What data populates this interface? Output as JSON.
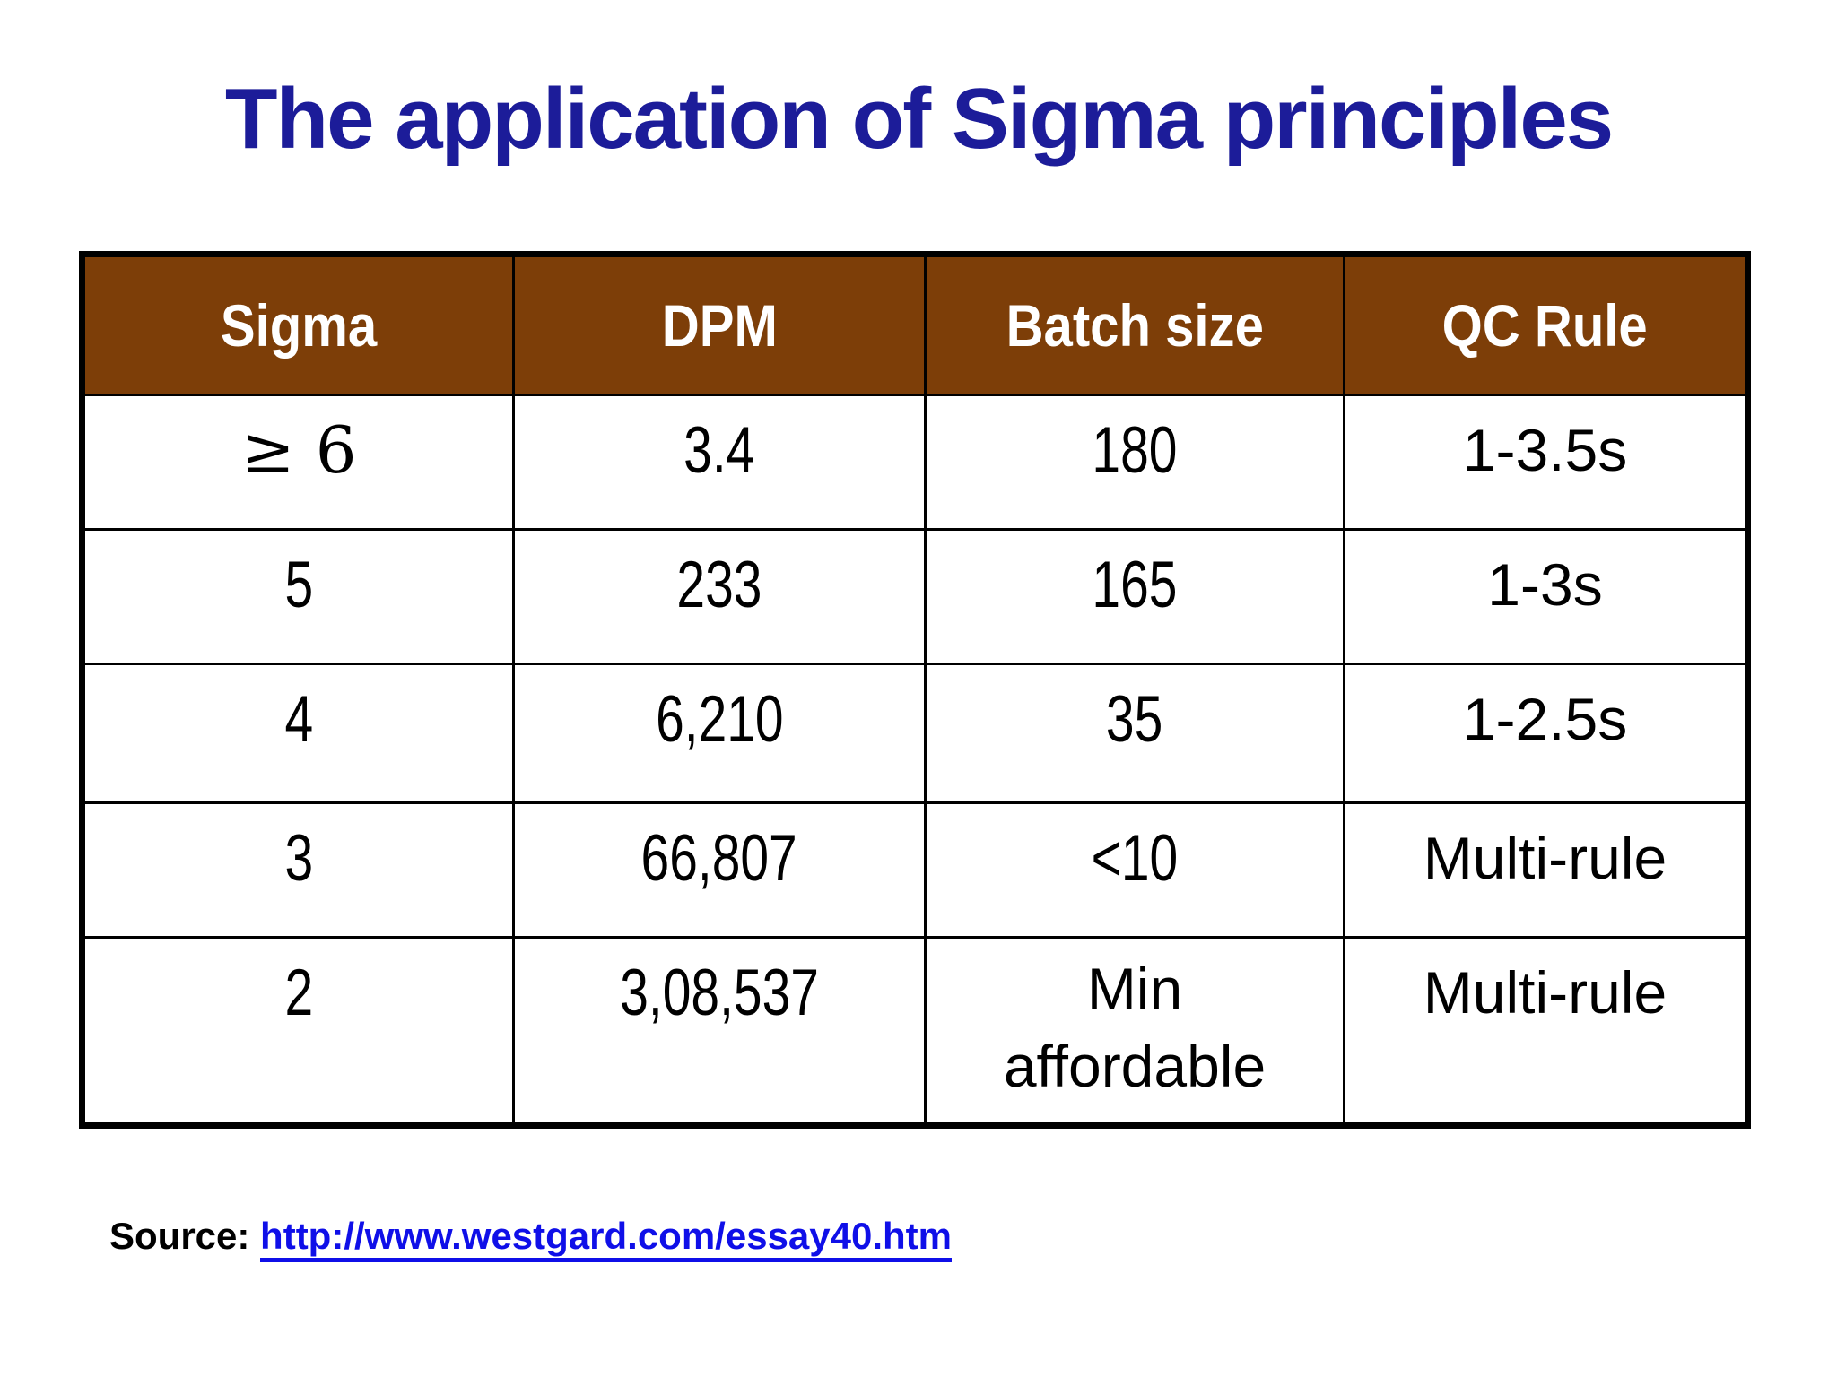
{
  "title": "The application of Sigma principles",
  "table": {
    "headers": [
      "Sigma",
      "DPM",
      "Batch size",
      "QC Rule"
    ],
    "rows": [
      [
        "≥ 6",
        "3.4",
        "180",
        "1-3.5s"
      ],
      [
        "5",
        "233",
        "165",
        "1-3s"
      ],
      [
        "4",
        "6,210",
        "35",
        "1-2.5s"
      ],
      [
        "3",
        "66,807",
        "<10",
        "Multi-rule"
      ],
      [
        "2",
        "3,08,537",
        "Min affordable",
        "Multi-rule"
      ]
    ]
  },
  "source": {
    "label": "Source:",
    "link": "http://www.westgard.com/essay40.htm"
  },
  "colors": {
    "title_text": "#1c1c99",
    "header_background": "#7d3e08",
    "header_text": "#ffffff",
    "table_border": "#000000",
    "body_text": "#000000",
    "link_text": "#0f0fe8",
    "page_background": "#ffffff"
  }
}
